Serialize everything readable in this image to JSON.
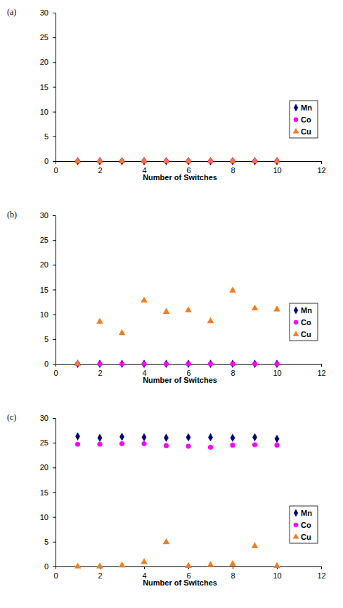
{
  "chart_data": [
    {
      "type": "scatter",
      "title": "(a)",
      "x_label": "Number of Switches",
      "x": [
        1,
        2,
        3,
        4,
        5,
        6,
        7,
        8,
        9,
        10
      ],
      "series": [
        {
          "name": "Mn",
          "color": "#000080",
          "marker": "diamond",
          "values": [
            0,
            0,
            0,
            0,
            0,
            0,
            0,
            0,
            0,
            0
          ]
        },
        {
          "name": "Co",
          "color": "#ff00ff",
          "marker": "circle",
          "values": [
            0,
            0,
            0,
            0,
            0,
            0,
            0,
            0,
            0,
            0
          ]
        },
        {
          "name": "Cu",
          "color": "#f47b20",
          "marker": "triangle",
          "values": [
            0,
            0,
            0,
            0,
            0,
            0,
            0,
            0,
            0,
            0
          ]
        }
      ],
      "xlim": [
        0,
        12
      ],
      "xticks": [
        0,
        2,
        4,
        6,
        8,
        10,
        12
      ],
      "ylim": [
        0,
        30
      ],
      "yticks": [
        0,
        5,
        10,
        15,
        20,
        25,
        30
      ],
      "legend": "right"
    },
    {
      "type": "scatter",
      "title": "(b)",
      "x_label": "Number of Switches",
      "x": [
        1,
        2,
        3,
        4,
        5,
        6,
        7,
        8,
        9,
        10
      ],
      "series": [
        {
          "name": "Mn",
          "color": "#000080",
          "marker": "diamond",
          "values": [
            0,
            0,
            0,
            0,
            0,
            0,
            0,
            0,
            0,
            0
          ]
        },
        {
          "name": "Co",
          "color": "#ff00ff",
          "marker": "circle",
          "values": [
            0,
            0,
            0,
            0,
            0,
            0,
            0,
            0,
            0,
            0
          ]
        },
        {
          "name": "Cu",
          "color": "#f47b20",
          "marker": "triangle",
          "values": [
            0,
            8.5,
            6.2,
            12.8,
            10.5,
            10.8,
            8.6,
            14.8,
            11.2,
            11.0
          ]
        }
      ],
      "xlim": [
        0,
        12
      ],
      "xticks": [
        0,
        2,
        4,
        6,
        8,
        10,
        12
      ],
      "ylim": [
        0,
        30
      ],
      "yticks": [
        0,
        5,
        10,
        15,
        20,
        25,
        30
      ],
      "legend": "right"
    },
    {
      "type": "scatter",
      "title": "(c)",
      "x_label": "Number of Switches",
      "x": [
        1,
        2,
        3,
        4,
        5,
        6,
        7,
        8,
        9,
        10
      ],
      "series": [
        {
          "name": "Mn",
          "color": "#000080",
          "marker": "diamond",
          "values": [
            26.3,
            26.0,
            26.2,
            26.1,
            26.0,
            26.1,
            26.1,
            26.0,
            26.1,
            25.8
          ]
        },
        {
          "name": "Co",
          "color": "#ff00ff",
          "marker": "circle",
          "values": [
            24.7,
            24.7,
            24.8,
            24.8,
            24.4,
            24.3,
            24.1,
            24.5,
            24.6,
            24.5
          ]
        },
        {
          "name": "Cu",
          "color": "#f47b20",
          "marker": "triangle",
          "values": [
            0,
            0,
            0.2,
            0.9,
            4.9,
            0.1,
            0.3,
            0.5,
            4.1,
            0.1
          ]
        }
      ],
      "xlim": [
        0,
        12
      ],
      "xticks": [
        0,
        2,
        4,
        6,
        8,
        10,
        12
      ],
      "ylim": [
        0,
        30
      ],
      "yticks": [
        0,
        5,
        10,
        15,
        20,
        25,
        30
      ],
      "legend": "right"
    }
  ]
}
